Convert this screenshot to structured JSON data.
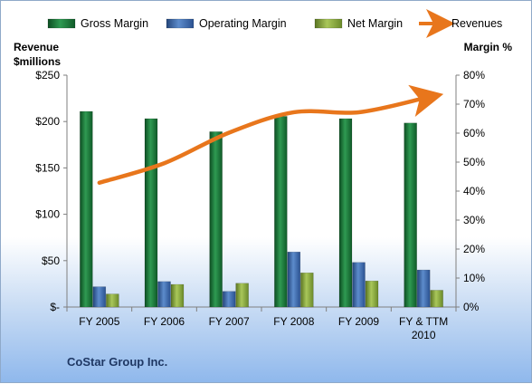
{
  "chart_data": {
    "type": "bar",
    "categories": [
      [
        "FY 2005"
      ],
      [
        "FY 2006"
      ],
      [
        "FY 2007"
      ],
      [
        "FY 2008"
      ],
      [
        "FY 2009"
      ],
      [
        "FY & TTM",
        "2010"
      ]
    ],
    "series": [
      {
        "name": "Gross Margin",
        "kind": "bar",
        "axis": "right",
        "color": "#1e7a3c",
        "values": [
          67.5,
          65,
          60.5,
          65.8,
          65,
          63.5
        ]
      },
      {
        "name": "Operating Margin",
        "kind": "bar",
        "axis": "right",
        "color": "#3f6fb0",
        "values": [
          7,
          8.8,
          5.4,
          19,
          15.4,
          12.8
        ]
      },
      {
        "name": "Net Margin",
        "kind": "bar",
        "axis": "right",
        "color": "#88a83a",
        "values": [
          4.5,
          7.8,
          8.2,
          11.8,
          9,
          5.8
        ]
      },
      {
        "name": "Revenues",
        "kind": "line",
        "axis": "left",
        "color": "#e8761c",
        "values": [
          134,
          155,
          188,
          210,
          210,
          225
        ]
      }
    ],
    "left_axis": {
      "title": [
        "Revenue",
        "$millions"
      ],
      "range": [
        0,
        250
      ],
      "ticks": [
        0,
        50,
        100,
        150,
        200,
        250
      ],
      "tick_labels": [
        "$-",
        "$50",
        "$100",
        "$150",
        "$200",
        "$250"
      ]
    },
    "right_axis": {
      "title": "Margin %",
      "range": [
        0,
        80
      ],
      "ticks": [
        0,
        10,
        20,
        30,
        40,
        50,
        60,
        70,
        80
      ],
      "tick_labels": [
        "0%",
        "10%",
        "20%",
        "30%",
        "40%",
        "50%",
        "60%",
        "70%",
        "80%"
      ]
    },
    "grid": false,
    "legend_position": "top"
  },
  "footer": {
    "company": "CoStar Group Inc."
  }
}
